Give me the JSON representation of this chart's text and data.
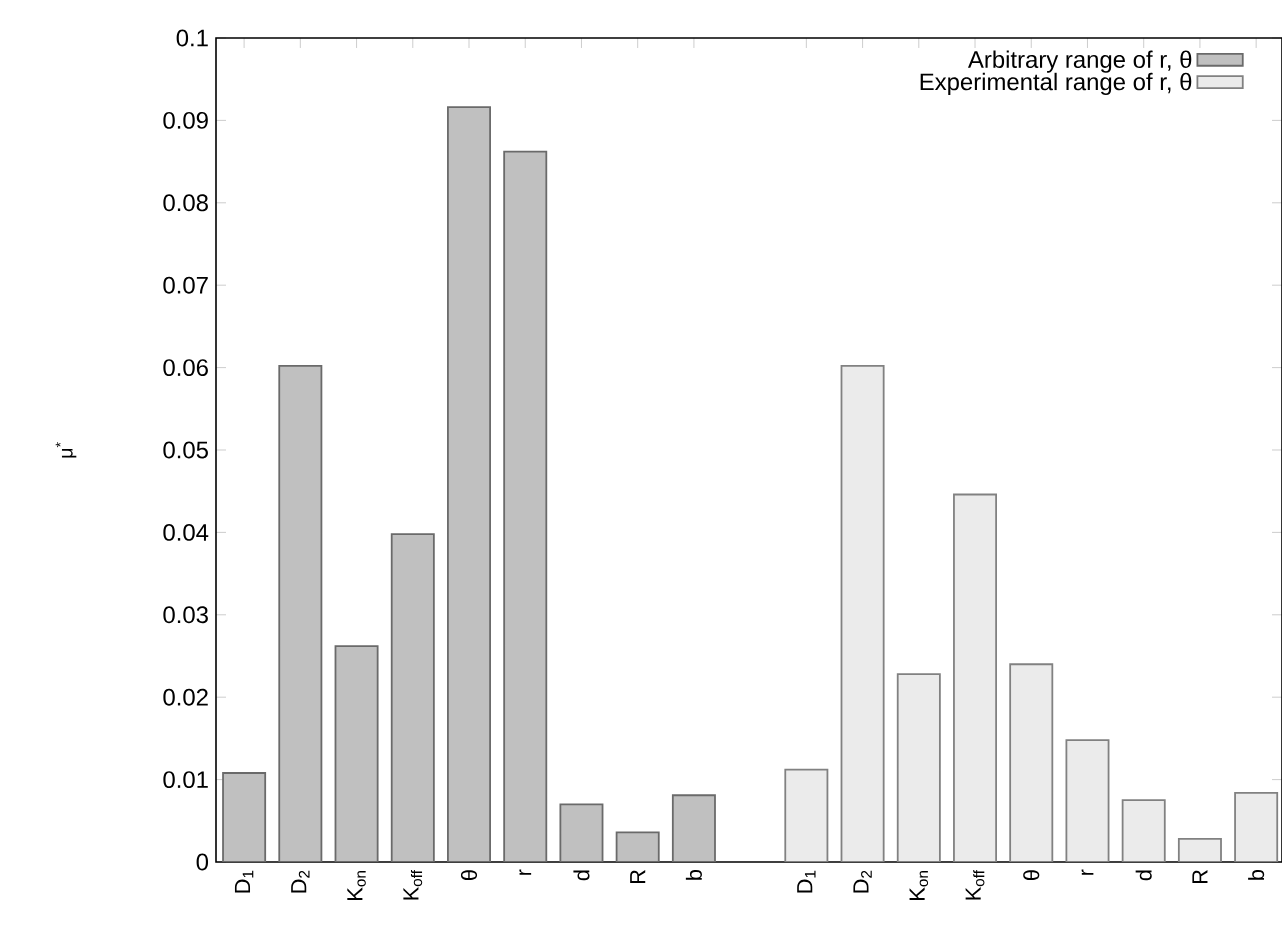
{
  "chart_data": {
    "type": "bar",
    "ylabel": "μ$^{*}$",
    "categories": [
      "D$_{1}$",
      "D$_{2}$",
      "K$_{on}$",
      "K$_{off}$",
      "θ",
      "r",
      "d",
      "R",
      "b",
      null,
      "D$_{1}$",
      "D$_{2}$",
      "K$_{on}$",
      "K$_{off}$",
      "θ",
      "r",
      "d",
      "R",
      "b"
    ],
    "series": [
      {
        "name": "Arbitrary range of r, θ",
        "color": "#c0c0c0",
        "values": [
          0.0108,
          0.0602,
          0.0262,
          0.0398,
          0.0916,
          0.0862,
          0.007,
          0.0036,
          0.0081,
          null,
          null,
          null,
          null,
          null,
          null,
          null,
          null,
          null,
          null
        ]
      },
      {
        "name": "Experimental range of r, θ",
        "color": "#ebebeb",
        "values": [
          null,
          null,
          null,
          null,
          null,
          null,
          null,
          null,
          null,
          null,
          0.0112,
          0.0602,
          0.0228,
          0.0446,
          0.024,
          0.0148,
          0.0075,
          0.0028,
          0.0084
        ]
      }
    ],
    "ylim": [
      0,
      0.1
    ],
    "yticks": [
      0,
      0.01,
      0.02,
      0.03,
      0.04,
      0.05,
      0.06,
      0.07,
      0.08,
      0.09,
      0.1
    ],
    "legend": "top right",
    "grid": false
  }
}
